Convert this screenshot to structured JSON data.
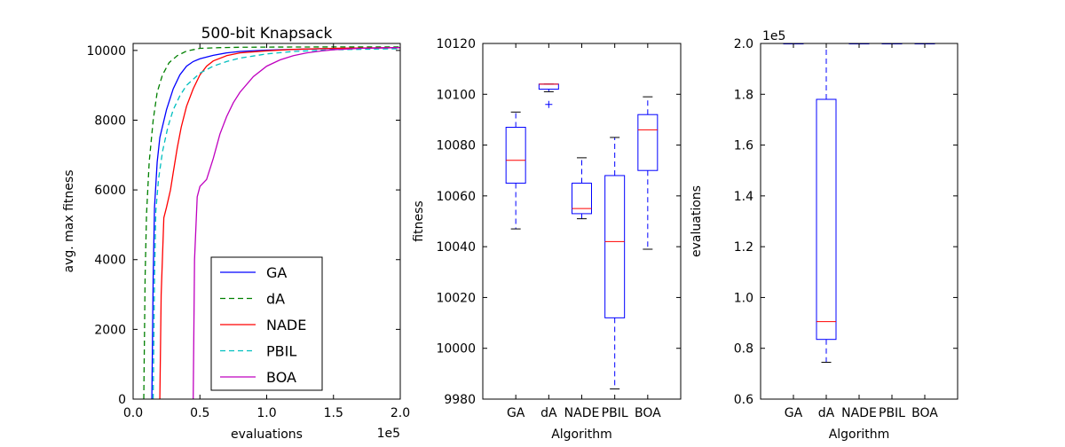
{
  "chart_data": [
    {
      "type": "line",
      "title": "500-bit Knapsack",
      "xlabel": "evaluations",
      "ylabel": "avg. max fitness",
      "x_multiplier_label": "1e5",
      "xlim": [
        0,
        2.0
      ],
      "ylim": [
        0,
        10200
      ],
      "xticks": [
        0,
        0.5,
        1.0,
        1.5,
        2.0
      ],
      "xtick_labels": [
        "0.0",
        "0.5",
        "1.0",
        "1.5",
        "2.0"
      ],
      "yticks": [
        0,
        2000,
        4000,
        6000,
        8000,
        10000
      ],
      "ytick_labels": [
        "0",
        "2000",
        "4000",
        "6000",
        "8000",
        "10000"
      ],
      "legend_position": "lower-right",
      "series": [
        {
          "name": "GA",
          "color": "#0000ff",
          "dash": "solid",
          "x": [
            0.14,
            0.15,
            0.16,
            0.18,
            0.2,
            0.25,
            0.3,
            0.35,
            0.4,
            0.45,
            0.5,
            0.6,
            0.7,
            0.8,
            1.0,
            1.3,
            1.6,
            2.0
          ],
          "y": [
            0,
            3500,
            5500,
            6800,
            7500,
            8300,
            8900,
            9300,
            9550,
            9680,
            9760,
            9860,
            9930,
            9970,
            10010,
            10040,
            10060,
            10080
          ]
        },
        {
          "name": "dA",
          "color": "#008000",
          "dash": "dashed",
          "x": [
            0.08,
            0.09,
            0.1,
            0.12,
            0.15,
            0.18,
            0.22,
            0.27,
            0.33,
            0.4,
            0.5,
            0.65,
            0.8,
            1.0,
            1.5,
            2.0
          ],
          "y": [
            0,
            3500,
            5300,
            6800,
            8000,
            8800,
            9300,
            9650,
            9850,
            9980,
            10060,
            10080,
            10090,
            10095,
            10100,
            10100
          ]
        },
        {
          "name": "NADE",
          "color": "#ff0000",
          "dash": "solid",
          "x": [
            0.2,
            0.21,
            0.23,
            0.25,
            0.28,
            0.3,
            0.33,
            0.36,
            0.4,
            0.45,
            0.5,
            0.55,
            0.6,
            0.7,
            0.8,
            1.0,
            1.2,
            1.5,
            2.0
          ],
          "y": [
            0,
            3000,
            5200,
            5500,
            6000,
            6500,
            7200,
            7800,
            8400,
            8900,
            9300,
            9550,
            9700,
            9850,
            9930,
            9990,
            10030,
            10060,
            10080
          ]
        },
        {
          "name": "PBIL",
          "color": "#00bfbf",
          "dash": "dashed",
          "x": [
            0.15,
            0.16,
            0.17,
            0.19,
            0.22,
            0.26,
            0.3,
            0.35,
            0.4,
            0.5,
            0.6,
            0.7,
            0.8,
            1.0,
            1.2,
            1.5,
            2.0
          ],
          "y": [
            0,
            3500,
            5400,
            6300,
            7100,
            7800,
            8300,
            8700,
            9000,
            9350,
            9550,
            9680,
            9780,
            9900,
            9970,
            10020,
            10050
          ]
        },
        {
          "name": "BOA",
          "color": "#bf00bf",
          "dash": "solid",
          "x": [
            0.45,
            0.46,
            0.48,
            0.5,
            0.55,
            0.6,
            0.65,
            0.7,
            0.75,
            0.8,
            0.9,
            1.0,
            1.1,
            1.2,
            1.3,
            1.4,
            1.5,
            1.7,
            2.0
          ],
          "y": [
            0,
            4000,
            5800,
            6100,
            6300,
            6900,
            7600,
            8100,
            8500,
            8800,
            9250,
            9550,
            9730,
            9850,
            9930,
            9980,
            10020,
            10060,
            10080
          ]
        }
      ]
    },
    {
      "type": "box",
      "title": "",
      "xlabel": "Algorithm",
      "ylabel": "fitness",
      "ylim": [
        9980,
        10120
      ],
      "yticks": [
        9980,
        10000,
        10020,
        10040,
        10060,
        10080,
        10100,
        10120
      ],
      "ytick_labels": [
        "9980",
        "10000",
        "10020",
        "10040",
        "10060",
        "10080",
        "10100",
        "10120"
      ],
      "categories": [
        "GA",
        "dA",
        "NADE",
        "PBIL",
        "BOA"
      ],
      "boxes": [
        {
          "min": 10047,
          "q1": 10065,
          "median": 10074,
          "q3": 10087,
          "max": 10093,
          "outliers": []
        },
        {
          "min": 10101,
          "q1": 10102,
          "median": 10104,
          "q3": 10104,
          "max": 10104,
          "outliers": [
            10096
          ]
        },
        {
          "min": 10051,
          "q1": 10053,
          "median": 10055,
          "q3": 10065,
          "max": 10075,
          "outliers": []
        },
        {
          "min": 9984,
          "q1": 10012,
          "median": 10042,
          "q3": 10068,
          "max": 10083,
          "outliers": []
        },
        {
          "min": 10039,
          "q1": 10070,
          "median": 10086,
          "q3": 10092,
          "max": 10099,
          "outliers": []
        }
      ]
    },
    {
      "type": "box",
      "title": "",
      "xlabel": "Algorithm",
      "ylabel": "evaluations",
      "y_multiplier_label": "1e5",
      "ylim": [
        0.6,
        2.0
      ],
      "yticks": [
        0.6,
        0.8,
        1.0,
        1.2,
        1.4,
        1.6,
        1.8,
        2.0
      ],
      "ytick_labels": [
        "0.6",
        "0.8",
        "1.0",
        "1.2",
        "1.4",
        "1.6",
        "1.8",
        "2.0"
      ],
      "categories": [
        "GA",
        "dA",
        "NADE",
        "PBIL",
        "BOA"
      ],
      "boxes": [
        {
          "min": 2.0,
          "q1": 2.0,
          "median": 2.0,
          "q3": 2.0,
          "max": 2.0,
          "outliers": []
        },
        {
          "min": 0.745,
          "q1": 0.835,
          "median": 0.905,
          "q3": 1.78,
          "max": 2.0,
          "outliers": []
        },
        {
          "min": 2.0,
          "q1": 2.0,
          "median": 2.0,
          "q3": 2.0,
          "max": 2.0,
          "outliers": []
        },
        {
          "min": 2.0,
          "q1": 2.0,
          "median": 2.0,
          "q3": 2.0,
          "max": 2.0,
          "outliers": []
        },
        {
          "min": 2.0,
          "q1": 2.0,
          "median": 2.0,
          "q3": 2.0,
          "max": 2.0,
          "outliers": []
        }
      ]
    }
  ]
}
